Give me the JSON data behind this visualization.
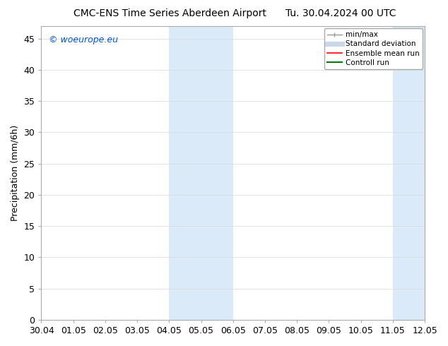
{
  "title_left": "CMC-ENS Time Series Aberdeen Airport",
  "title_right": "Tu. 30.04.2024 00 UTC",
  "ylabel": "Precipitation (mm/6h)",
  "watermark": "© woeurope.eu",
  "watermark_color": "#0055cc",
  "xlim": [
    0,
    12
  ],
  "ylim": [
    0,
    47
  ],
  "yticks": [
    0,
    5,
    10,
    15,
    20,
    25,
    30,
    35,
    40,
    45
  ],
  "xtick_labels": [
    "30.04",
    "01.05",
    "02.05",
    "03.05",
    "04.05",
    "05.05",
    "06.05",
    "07.05",
    "08.05",
    "09.05",
    "10.05",
    "11.05",
    "12.05"
  ],
  "shaded_regions": [
    {
      "x_start": 4.0,
      "x_end": 6.0,
      "color": "#daeaf8"
    },
    {
      "x_start": 11.0,
      "x_end": 12.0,
      "color": "#daeaf8"
    }
  ],
  "legend_entries": [
    {
      "label": "min/max",
      "color": "#999999",
      "lw": 1.0,
      "linestyle": "-",
      "type": "line_with_ticks"
    },
    {
      "label": "Standard deviation",
      "color": "#c8d8e8",
      "lw": 5,
      "linestyle": "-",
      "type": "thick_line"
    },
    {
      "label": "Ensemble mean run",
      "color": "#ff0000",
      "lw": 1.2,
      "linestyle": "-",
      "type": "line"
    },
    {
      "label": "Controll run",
      "color": "#007700",
      "lw": 1.5,
      "linestyle": "-",
      "type": "line"
    }
  ],
  "bg_color": "#ffffff",
  "spine_color": "#aaaaaa",
  "grid_color": "#dddddd",
  "font_size": 9,
  "title_font_size": 10,
  "watermark_font_size": 9
}
